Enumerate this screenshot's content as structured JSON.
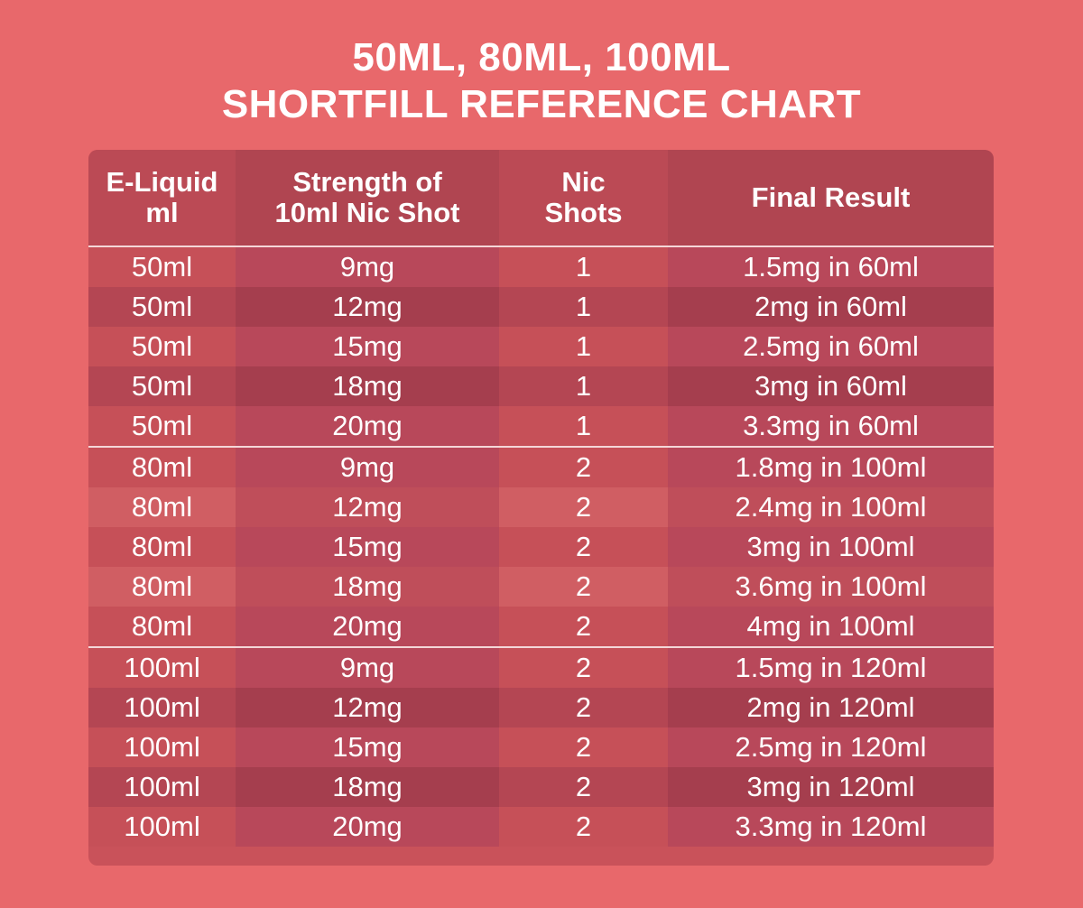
{
  "title": {
    "line1": "50ML, 80ML, 100ML",
    "line2": "SHORTFILL REFERENCE CHART"
  },
  "colors": {
    "background": "#e8686b",
    "table_base": "#c9525a",
    "text": "#ffffff",
    "divider": "#f4d7d8"
  },
  "table": {
    "headers": [
      "E-Liquid\nml",
      "Strength of\n10ml Nic Shot",
      "Nic\nShots",
      "Final Result"
    ],
    "groups": [
      {
        "rows": [
          [
            "50ml",
            "9mg",
            "1",
            "1.5mg in 60ml"
          ],
          [
            "50ml",
            "12mg",
            "1",
            "2mg in 60ml"
          ],
          [
            "50ml",
            "15mg",
            "1",
            "2.5mg in 60ml"
          ],
          [
            "50ml",
            "18mg",
            "1",
            "3mg in 60ml"
          ],
          [
            "50ml",
            "20mg",
            "1",
            "3.3mg in 60ml"
          ]
        ]
      },
      {
        "rows": [
          [
            "80ml",
            "9mg",
            "2",
            "1.8mg in 100ml"
          ],
          [
            "80ml",
            "12mg",
            "2",
            "2.4mg in 100ml"
          ],
          [
            "80ml",
            "15mg",
            "2",
            "3mg in 100ml"
          ],
          [
            "80ml",
            "18mg",
            "2",
            "3.6mg in 100ml"
          ],
          [
            "80ml",
            "20mg",
            "2",
            "4mg in 100ml"
          ]
        ]
      },
      {
        "rows": [
          [
            "100ml",
            "9mg",
            "2",
            "1.5mg in 120ml"
          ],
          [
            "100ml",
            "12mg",
            "2",
            "2mg in 120ml"
          ],
          [
            "100ml",
            "15mg",
            "2",
            "2.5mg in 120ml"
          ],
          [
            "100ml",
            "18mg",
            "2",
            "3mg in 120ml"
          ],
          [
            "100ml",
            "20mg",
            "2",
            "3.3mg in 120ml"
          ]
        ]
      }
    ]
  }
}
